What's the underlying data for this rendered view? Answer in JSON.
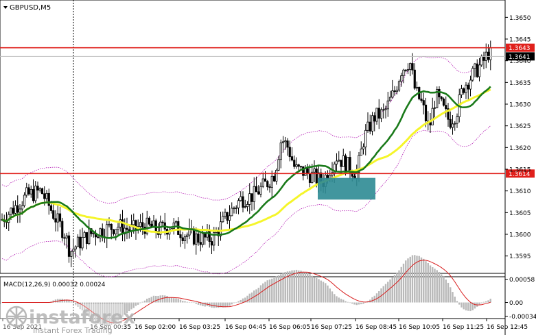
{
  "chart": {
    "symbol": "GBPUSD,M5",
    "macd_label": "MACD(12,26,9) 0.00032 0.00024",
    "watermark": {
      "brand": "instaforex",
      "tagline": "Instant Forex Trading"
    },
    "price_axis": {
      "ticks": [
        "1.3650",
        "1.3645",
        "1.3640",
        "1.3635",
        "1.3630",
        "1.3625",
        "1.3620",
        "1.3615",
        "1.3610",
        "1.3605",
        "1.3600",
        "1.3595"
      ],
      "range": [
        1.3591,
        1.3654
      ]
    },
    "macd_axis": {
      "ticks": [
        "0.00058",
        "0.00",
        "-0.00034"
      ]
    },
    "time_axis": {
      "labels": [
        "16 Sep 2021",
        "16 Sep 00:35",
        "16 Sep 02:00",
        "16 Sep 03:25",
        "16 Sep 04:45",
        "16 Sep 06:05",
        "16 Sep 07:25",
        "16 Sep 08:45",
        "16 Sep 10:05",
        "16 Sep 11:25",
        "16 Sep 12:45"
      ]
    },
    "levels": [
      {
        "label": "1.3643",
        "price": 1.3643,
        "color": "#e0201b"
      },
      {
        "label": "1.3614",
        "price": 1.3614,
        "color": "#e0201b"
      }
    ],
    "current_price": {
      "label": "1.3641",
      "price": 1.3641
    },
    "buy_zone": {
      "price_top": 1.3613,
      "price_bottom": 1.3608,
      "color": "#2e8b94"
    },
    "colors": {
      "bull": "#000000",
      "bear": "#000000",
      "ma_fast": "#1a7a1a",
      "ma_slow": "#f5f52a",
      "envelope": "#b51db5",
      "macd_hist": "#b9b9b9",
      "macd_signal": "#d81c1c"
    }
  }
}
